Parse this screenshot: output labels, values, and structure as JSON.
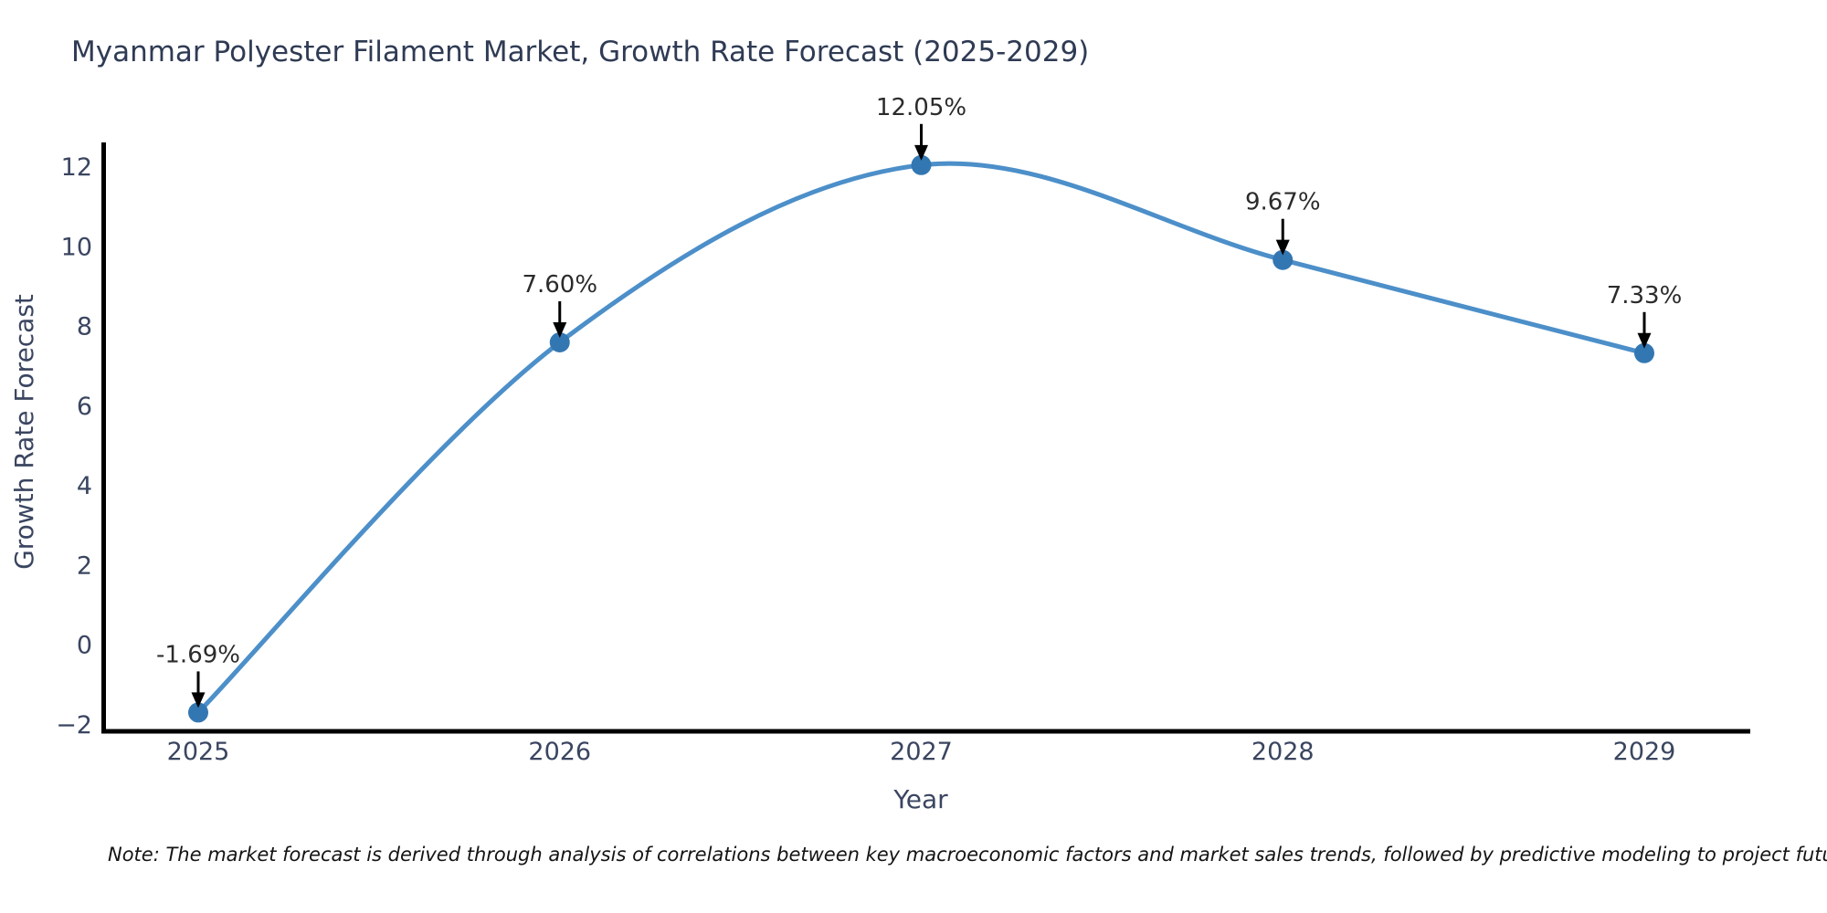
{
  "chart_data": {
    "type": "line",
    "title": "Myanmar Polyester Filament Market, Growth Rate Forecast (2025-2029)",
    "xlabel": "Year",
    "ylabel": "Growth Rate Forecast",
    "categories": [
      "2025",
      "2026",
      "2027",
      "2028",
      "2029"
    ],
    "series": [
      {
        "name": "Growth Rate Forecast",
        "values": [
          -1.69,
          7.6,
          12.05,
          9.67,
          7.33
        ],
        "point_labels": [
          "-1.69%",
          "7.60%",
          "12.05%",
          "9.67%",
          "7.33%"
        ]
      }
    ],
    "yticks": [
      12,
      10,
      8,
      6,
      4,
      2,
      0,
      -2
    ],
    "ytick_labels": [
      "12",
      "10",
      "8",
      "6",
      "4",
      "2",
      "0",
      "−2"
    ],
    "ylim": [
      -2.2,
      12.6
    ],
    "grid": false,
    "legend": "none",
    "smooth_line": true,
    "note": "Note: The market forecast is derived through analysis of correlations between key macroeconomic factors and market sales trends, followed by predictive modeling to project future sales"
  },
  "colors": {
    "line": "#4c8fc9",
    "marker": "#3377b2",
    "title_text": "#2f3b54",
    "axis_text": "#3a4560",
    "annotation_text": "#2b2b2b",
    "spine": "#000000",
    "arrow": "#000000",
    "background": "#ffffff"
  }
}
